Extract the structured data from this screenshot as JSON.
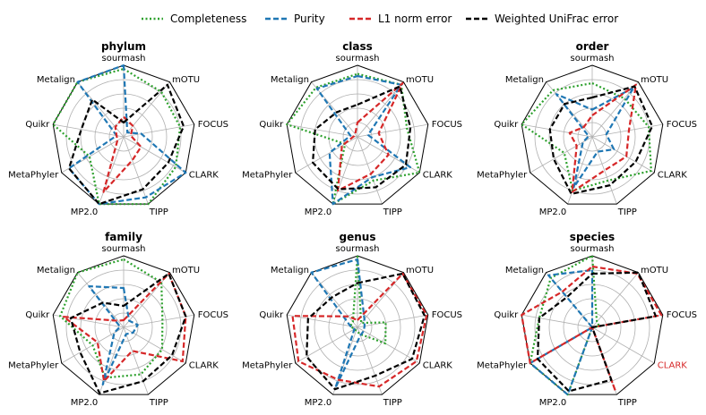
{
  "chart_data": {
    "type": "radar",
    "axes": [
      "sourmash",
      "mOTU",
      "FOCUS",
      "CLARK",
      "TIPP",
      "MP2.0",
      "MetaPhyler",
      "Quikr",
      "Metalign"
    ],
    "rlim": [
      0,
      1
    ],
    "grid": true,
    "legend_position": "top",
    "series_styles": [
      {
        "name": "Completeness",
        "color": "#2ca02c",
        "dash": "dotted"
      },
      {
        "name": "Purity",
        "color": "#1f77b4",
        "dash": "dashed"
      },
      {
        "name": "L1 norm error",
        "color": "#d62728",
        "dash": "dashed"
      },
      {
        "name": "Weighted UniFrac error",
        "color": "#000000",
        "dash": "dashed"
      }
    ],
    "panels": [
      {
        "title": "phylum",
        "highlight_axis": "",
        "series": [
          {
            "name": "Completeness",
            "values": [
              0.95,
              0.82,
              0.8,
              0.84,
              1.0,
              1.0,
              0.55,
              1.0,
              1.0
            ]
          },
          {
            "name": "Purity",
            "values": [
              1.0,
              0.08,
              0.25,
              1.0,
              0.9,
              1.0,
              0.88,
              0.1,
              1.0
            ]
          },
          {
            "name": "L1 norm error",
            "values": [
              0.28,
              0.2,
              0.1,
              0.28,
              0.35,
              0.82,
              0.1,
              0.1,
              0.18
            ]
          },
          {
            "name": "Weighted UniFrac error",
            "values": [
              0.2,
              0.95,
              0.85,
              0.72,
              0.78,
              1.0,
              0.88,
              0.6,
              0.68
            ]
          }
        ]
      },
      {
        "title": "class",
        "highlight_axis": "",
        "series": [
          {
            "name": "Completeness",
            "values": [
              0.88,
              0.95,
              0.7,
              1.0,
              0.65,
              1.0,
              0.2,
              1.0,
              0.9
            ]
          },
          {
            "name": "Purity",
            "values": [
              0.85,
              0.95,
              0.15,
              0.85,
              0.6,
              1.0,
              0.45,
              0.1,
              0.88
            ]
          },
          {
            "name": "L1 norm error",
            "values": [
              0.2,
              0.98,
              0.3,
              0.5,
              0.55,
              0.8,
              0.25,
              0.05,
              0.05
            ]
          },
          {
            "name": "Weighted UniFrac error",
            "values": [
              0.45,
              0.92,
              0.75,
              0.78,
              0.75,
              0.78,
              0.72,
              0.6,
              0.45
            ]
          }
        ]
      },
      {
        "title": "order",
        "highlight_axis": "",
        "series": [
          {
            "name": "Completeness",
            "values": [
              0.75,
              0.7,
              0.8,
              0.95,
              0.65,
              0.8,
              0.45,
              1.0,
              0.85
            ]
          },
          {
            "name": "Purity",
            "values": [
              0.38,
              0.9,
              0.2,
              0.35,
              0.22,
              0.75,
              0.15,
              0.05,
              0.78
            ]
          },
          {
            "name": "L1 norm error",
            "values": [
              0.3,
              0.95,
              0.52,
              0.55,
              0.5,
              0.82,
              0.25,
              0.32,
              0.18
            ]
          },
          {
            "name": "Weighted UniFrac error",
            "values": [
              0.55,
              0.92,
              0.85,
              0.7,
              0.72,
              0.85,
              0.62,
              0.6,
              0.6
            ]
          }
        ]
      },
      {
        "title": "family",
        "highlight_axis": "",
        "series": [
          {
            "name": "Completeness",
            "values": [
              0.95,
              0.82,
              0.55,
              0.62,
              0.7,
              0.75,
              0.5,
              0.9,
              1.0
            ]
          },
          {
            "name": "Purity",
            "values": [
              0.55,
              0.12,
              0.2,
              0.15,
              0.1,
              0.85,
              0.15,
              0.05,
              0.75
            ]
          },
          {
            "name": "L1 norm error",
            "values": [
              0.1,
              0.98,
              0.88,
              0.95,
              0.35,
              0.8,
              0.42,
              0.85,
              0.12
            ]
          },
          {
            "name": "Weighted UniFrac error",
            "values": [
              0.3,
              0.98,
              0.88,
              0.78,
              0.8,
              0.98,
              0.7,
              0.75,
              0.45
            ]
          }
        ]
      },
      {
        "title": "genus",
        "highlight_axis": "",
        "series": [
          {
            "name": "Completeness",
            "values": [
              1.0,
              0.08,
              0.4,
              0.45,
              0.1,
              0.05,
              0.05,
              0.1,
              0.1
            ]
          },
          {
            "name": "Purity",
            "values": [
              0.95,
              0.15,
              0.1,
              0.1,
              0.12,
              0.9,
              0.05,
              0.1,
              1.0
            ]
          },
          {
            "name": "L1 norm error",
            "values": [
              0.1,
              0.98,
              0.98,
              0.95,
              0.88,
              0.78,
              0.95,
              0.92,
              0.2
            ]
          },
          {
            "name": "Weighted UniFrac error",
            "values": [
              0.62,
              0.98,
              0.95,
              0.88,
              0.72,
              0.92,
              0.82,
              0.7,
              0.55
            ]
          }
        ]
      },
      {
        "title": "species",
        "highlight_axis": "CLARK",
        "series": [
          {
            "name": "Completeness",
            "values": [
              1.0,
              0.1,
              0.1,
              0.0,
              0.0,
              1.0,
              1.0,
              0.75,
              0.9
            ]
          },
          {
            "name": "Purity",
            "values": [
              0.8,
              0.0,
              0.0,
              0.0,
              0.0,
              1.0,
              1.0,
              0.0,
              0.95
            ]
          },
          {
            "name": "L1 norm error",
            "values": [
              0.85,
              0.98,
              0.98,
              0.0,
              0.95,
              0.0,
              1.0,
              1.0,
              0.65
            ]
          },
          {
            "name": "Weighted UniFrac error",
            "values": [
              0.75,
              1.0,
              0.9,
              0.0,
              0.78,
              0.95,
              0.88,
              0.75,
              0.55
            ]
          }
        ]
      }
    ]
  }
}
